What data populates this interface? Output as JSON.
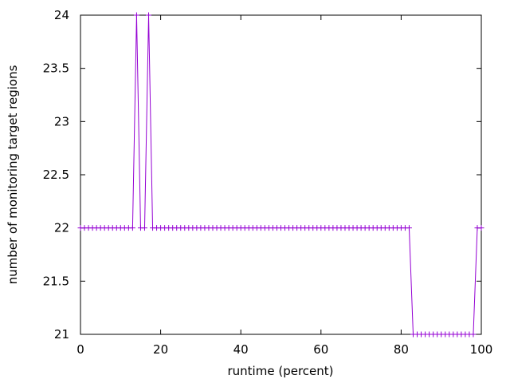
{
  "chart_data": {
    "type": "line",
    "title": "",
    "xlabel": "runtime (percent)",
    "ylabel": "number of monitoring target regions",
    "xlim": [
      0,
      100
    ],
    "ylim": [
      21,
      24
    ],
    "x_ticks": [
      0,
      20,
      40,
      60,
      80,
      100
    ],
    "x_tick_labels": [
      "0",
      "20",
      "40",
      "60",
      "80",
      "100"
    ],
    "y_ticks": [
      21,
      21.5,
      22,
      22.5,
      23,
      23.5,
      24
    ],
    "y_tick_labels": [
      "21",
      "21.5",
      "22",
      "22.5",
      "23",
      "23.5",
      "24"
    ],
    "grid": false,
    "legend": "none",
    "marker": "plus",
    "series": [
      {
        "color": "#9400d3",
        "x": [
          0,
          1,
          2,
          3,
          4,
          5,
          6,
          7,
          8,
          9,
          10,
          11,
          12,
          13,
          14,
          15,
          16,
          17,
          18,
          19,
          20,
          21,
          22,
          23,
          24,
          25,
          26,
          27,
          28,
          29,
          30,
          31,
          32,
          33,
          34,
          35,
          36,
          37,
          38,
          39,
          40,
          41,
          42,
          43,
          44,
          45,
          46,
          47,
          48,
          49,
          50,
          51,
          52,
          53,
          54,
          55,
          56,
          57,
          58,
          59,
          60,
          61,
          62,
          63,
          64,
          65,
          66,
          67,
          68,
          69,
          70,
          71,
          72,
          73,
          74,
          75,
          76,
          77,
          78,
          79,
          80,
          81,
          82,
          83,
          84,
          85,
          86,
          87,
          88,
          89,
          90,
          91,
          92,
          93,
          94,
          95,
          96,
          97,
          98,
          99,
          100
        ],
        "y": [
          22,
          22,
          22,
          22,
          22,
          22,
          22,
          22,
          22,
          22,
          22,
          22,
          22,
          22,
          24,
          22,
          22,
          24,
          22,
          22,
          22,
          22,
          22,
          22,
          22,
          22,
          22,
          22,
          22,
          22,
          22,
          22,
          22,
          22,
          22,
          22,
          22,
          22,
          22,
          22,
          22,
          22,
          22,
          22,
          22,
          22,
          22,
          22,
          22,
          22,
          22,
          22,
          22,
          22,
          22,
          22,
          22,
          22,
          22,
          22,
          22,
          22,
          22,
          22,
          22,
          22,
          22,
          22,
          22,
          22,
          22,
          22,
          22,
          22,
          22,
          22,
          22,
          22,
          22,
          22,
          22,
          22,
          22,
          21,
          21,
          21,
          21,
          21,
          21,
          21,
          21,
          21,
          21,
          21,
          21,
          21,
          21,
          21,
          21,
          22,
          22
        ]
      }
    ]
  }
}
